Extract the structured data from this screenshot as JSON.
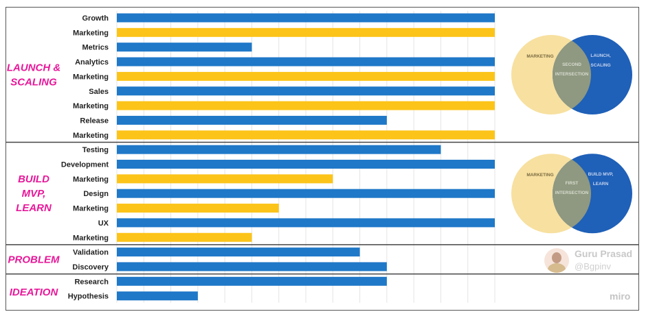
{
  "colors": {
    "blue": "#1f78c8",
    "yellow": "#fcc419",
    "stage_label": "#e8189a",
    "venn_yellow": "#f7e0a0",
    "venn_blue": "#1f60b8",
    "venn_overlap": "#8f9880",
    "venn_text_dark": "#7a6a40",
    "venn_text_light": "#c8d6f0",
    "venn_text_mid": "#d8ddd0"
  },
  "chart_data": {
    "type": "bar",
    "orientation": "horizontal",
    "xlim": [
      0,
      14
    ],
    "grid": true,
    "rows": [
      {
        "label": "Growth",
        "value": 14,
        "color": "blue"
      },
      {
        "label": "Marketing",
        "value": 14,
        "color": "yellow"
      },
      {
        "label": "Metrics",
        "value": 5,
        "color": "blue"
      },
      {
        "label": "Analytics",
        "value": 14,
        "color": "blue"
      },
      {
        "label": "Marketing",
        "value": 14,
        "color": "yellow"
      },
      {
        "label": "Sales",
        "value": 14,
        "color": "blue"
      },
      {
        "label": "Marketing",
        "value": 14,
        "color": "yellow"
      },
      {
        "label": "Release",
        "value": 10,
        "color": "blue"
      },
      {
        "label": "Marketing",
        "value": 14,
        "color": "yellow"
      },
      {
        "label": "Testing",
        "value": 12,
        "color": "blue"
      },
      {
        "label": "Development",
        "value": 14,
        "color": "blue"
      },
      {
        "label": "Marketing",
        "value": 8,
        "color": "yellow"
      },
      {
        "label": "Design",
        "value": 14,
        "color": "blue"
      },
      {
        "label": "Marketing",
        "value": 6,
        "color": "yellow"
      },
      {
        "label": "UX",
        "value": 14,
        "color": "blue"
      },
      {
        "label": "Marketing",
        "value": 5,
        "color": "yellow"
      },
      {
        "label": "Validation",
        "value": 9,
        "color": "blue"
      },
      {
        "label": "Discovery",
        "value": 10,
        "color": "blue"
      },
      {
        "label": "Research",
        "value": 10,
        "color": "blue"
      },
      {
        "label": "Hypothesis",
        "value": 3,
        "color": "blue"
      }
    ],
    "stages": [
      {
        "lines": [
          "LAUNCH &",
          "SCALING"
        ],
        "first_row": 0,
        "last_row": 8
      },
      {
        "lines": [
          "BUILD",
          "MVP,",
          "LEARN"
        ],
        "first_row": 9,
        "last_row": 15
      },
      {
        "lines": [
          "PROBLEM"
        ],
        "first_row": 16,
        "last_row": 17
      },
      {
        "lines": [
          "IDEATION"
        ],
        "first_row": 18,
        "last_row": 19
      }
    ],
    "venns": [
      {
        "stage": 0,
        "left": [
          "MARKETING"
        ],
        "right": [
          "LAUNCH,",
          "SCALING"
        ],
        "center": [
          "SECOND",
          "INTERSECTION"
        ]
      },
      {
        "stage": 1,
        "left": [
          "MARKETING"
        ],
        "right": [
          "BUILD MVP,",
          "LEARN"
        ],
        "center": [
          "FIRST",
          "INTERSECTION"
        ]
      }
    ]
  },
  "watermark": {
    "name": "Guru Prasad",
    "handle": "@Bgpinv",
    "brand": "miro"
  }
}
